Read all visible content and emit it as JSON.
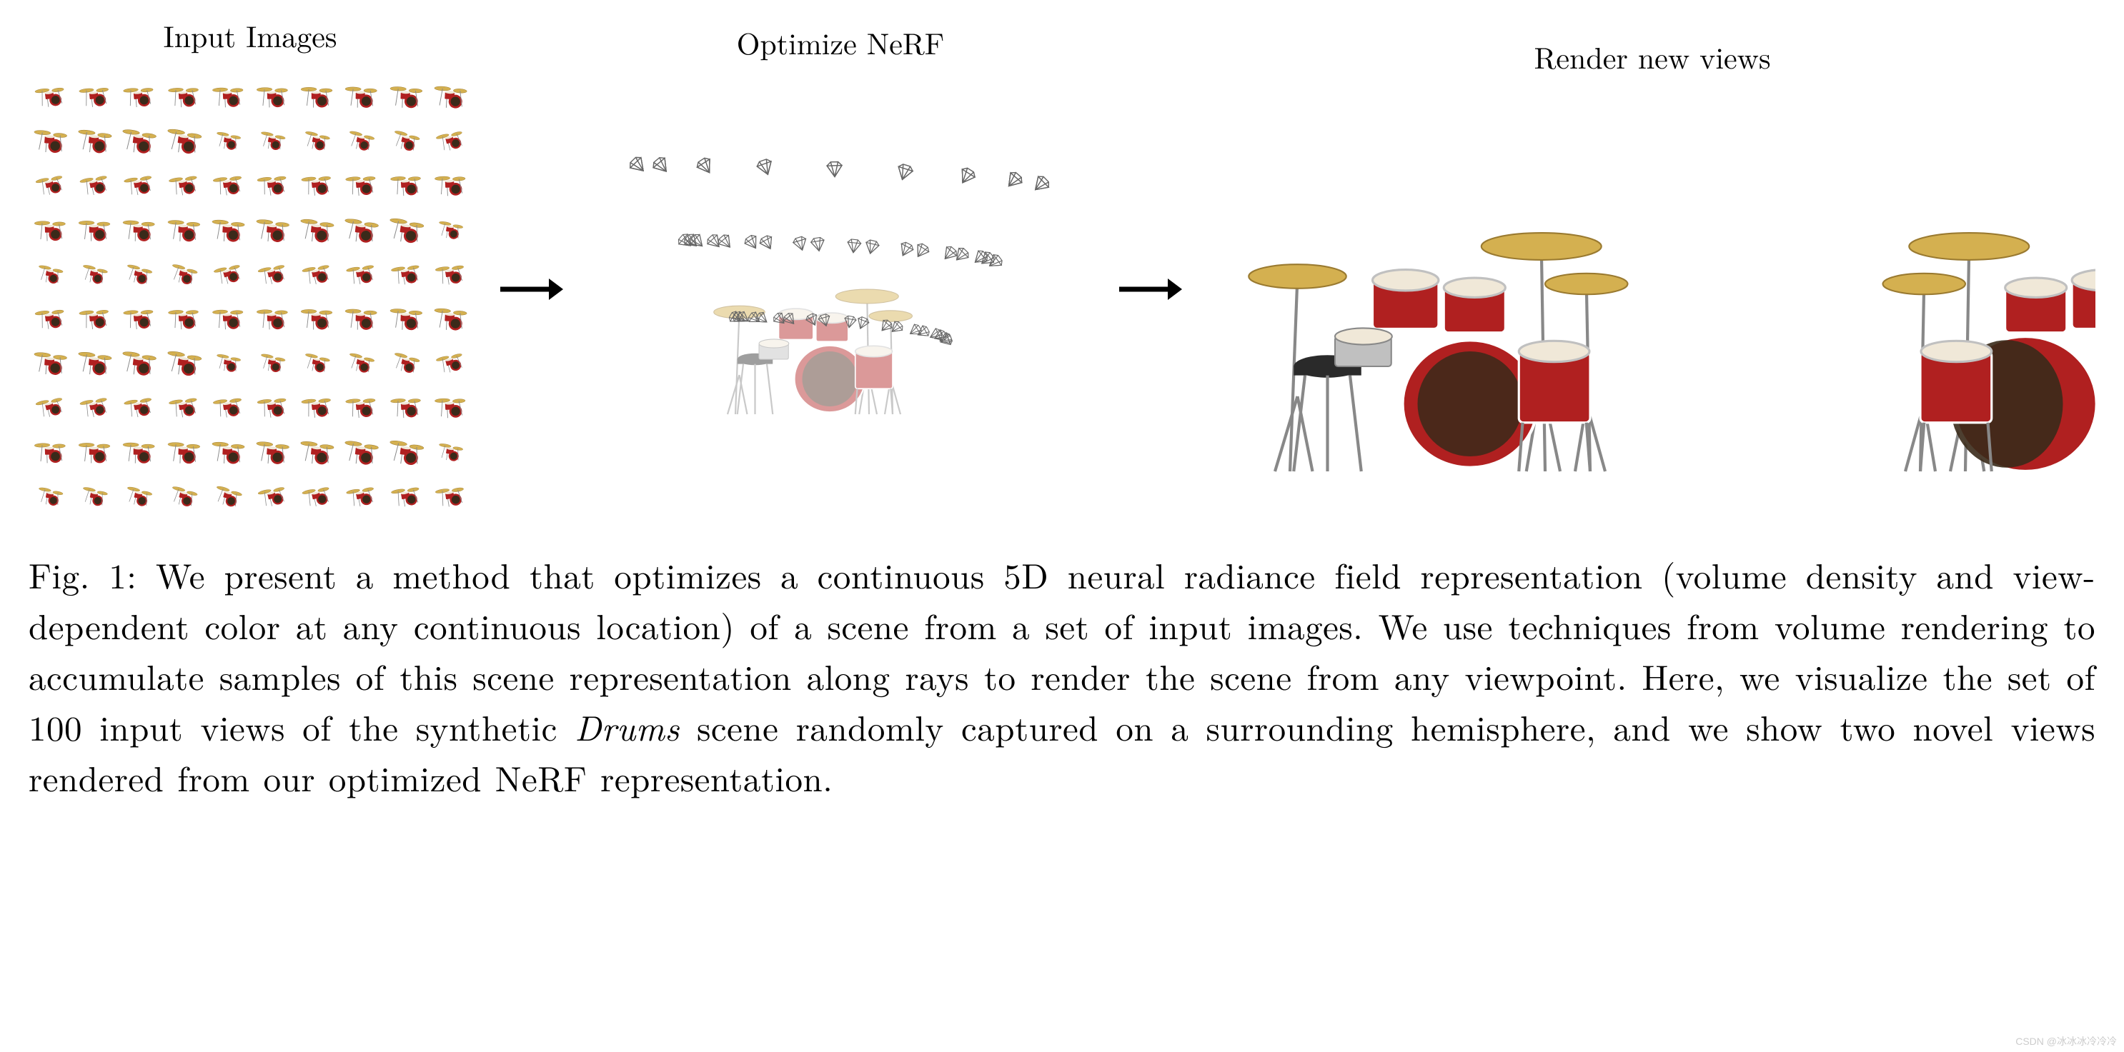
{
  "figure": {
    "stages": {
      "input": "Input Images",
      "optimize": "Optimize NeRF",
      "render": "Render new views"
    },
    "grid_size": 10,
    "caption_label": "Fig. 1:",
    "caption_text": "We present a method that optimizes a continuous 5D neural radiance field representation (volume density and view-dependent color at any continuous location) of a scene from a set of input images. We use techniques from volume rendering to accumulate samples of this scene representation along rays to render the scene from any viewpoint. Here, we visualize the set of 100 input views of the synthetic ",
    "caption_italic": "Drums",
    "caption_text2": " scene randomly captured on a surrounding hemisphere, and we show two novel views rendered from our optimized NeRF representation.",
    "colors": {
      "drum_red": "#b02020",
      "drum_dark": "#3a2a1a",
      "cymbal": "#d4b050",
      "cymbal_dark": "#9a7a30",
      "metal": "#888888",
      "metal_light": "#c0c0c0",
      "stool": "#2a2a2a",
      "drum_head": "#f0e8d8",
      "camera_wire": "#666666",
      "bg": "#ffffff"
    },
    "watermark": "CSDN @冰冰冰冷冷冷"
  }
}
